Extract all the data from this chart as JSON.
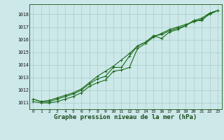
{
  "title": "Graphe pression niveau de la mer (hPa)",
  "xlabel_fontsize": 6.5,
  "background_color": "#cce8e8",
  "grid_color": "#aacccc",
  "line_color": "#1a6b1a",
  "x_hours": [
    0,
    1,
    2,
    3,
    4,
    5,
    6,
    7,
    8,
    9,
    10,
    11,
    12,
    13,
    14,
    15,
    16,
    17,
    18,
    19,
    20,
    21,
    22,
    23
  ],
  "line1": [
    1011.3,
    1011.1,
    1011.1,
    1011.3,
    1011.5,
    1011.7,
    1012.0,
    1012.5,
    1012.9,
    1013.1,
    1013.8,
    1013.8,
    1014.7,
    1015.5,
    1015.8,
    1016.3,
    1016.1,
    1016.6,
    1016.8,
    1017.1,
    1017.5,
    1017.5,
    1018.1,
    1018.3
  ],
  "line2": [
    1011.1,
    1011.0,
    1011.0,
    1011.1,
    1011.3,
    1011.5,
    1011.8,
    1012.3,
    1012.6,
    1012.8,
    1013.5,
    1013.6,
    1013.8,
    1015.3,
    1015.7,
    1016.2,
    1016.5,
    1016.8,
    1017.0,
    1017.2,
    1017.4,
    1017.6,
    1018.0,
    1018.3
  ],
  "line3": [
    1011.3,
    1011.1,
    1011.2,
    1011.4,
    1011.6,
    1011.8,
    1012.1,
    1012.6,
    1013.1,
    1013.5,
    1013.9,
    1014.4,
    1014.9,
    1015.5,
    1015.8,
    1016.3,
    1016.4,
    1016.7,
    1016.9,
    1017.1,
    1017.5,
    1017.7,
    1018.1,
    1018.3
  ],
  "ylim": [
    1010.5,
    1018.8
  ],
  "yticks": [
    1011,
    1012,
    1013,
    1014,
    1015,
    1016,
    1017,
    1018
  ],
  "xticks": [
    0,
    1,
    2,
    3,
    4,
    5,
    6,
    7,
    8,
    9,
    10,
    11,
    12,
    13,
    14,
    15,
    16,
    17,
    18,
    19,
    20,
    21,
    22,
    23
  ]
}
